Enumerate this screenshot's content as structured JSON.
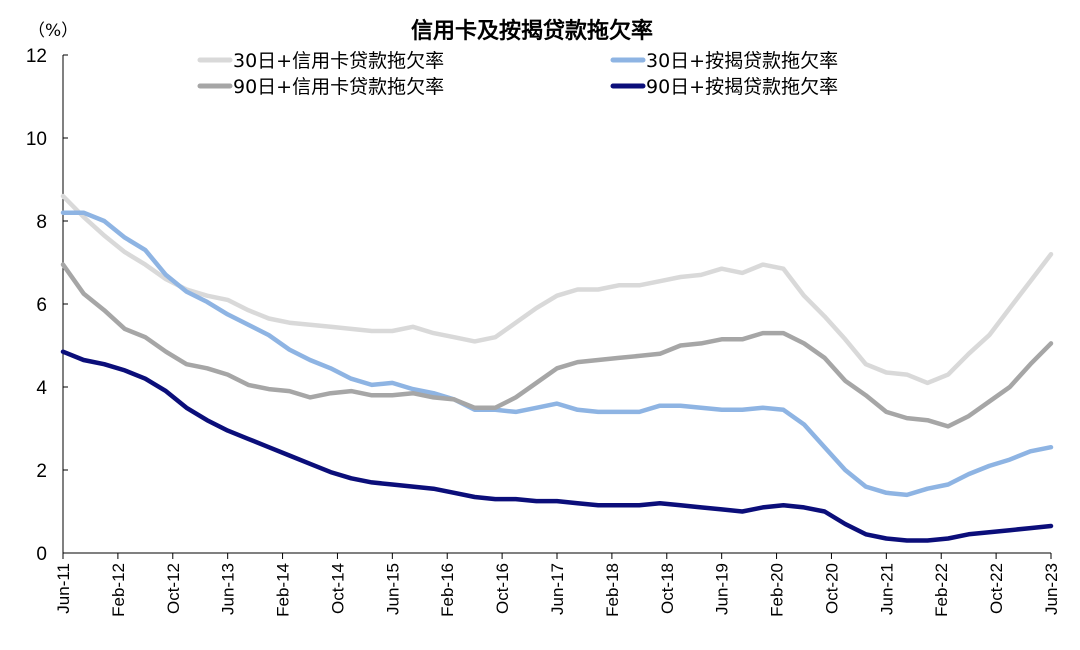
{
  "chart_data": {
    "type": "line",
    "title": "信用卡及按揭贷款拖欠率",
    "y_unit": "（%）",
    "ylim": [
      0,
      12
    ],
    "yticks": [
      "0",
      "2",
      "4",
      "6",
      "8",
      "10",
      "12"
    ],
    "x_tick_labels": [
      "Jun-11",
      "Feb-12",
      "Oct-12",
      "Jun-13",
      "Feb-14",
      "Oct-14",
      "Jun-15",
      "Feb-16",
      "Oct-16",
      "Jun-17",
      "Feb-18",
      "Oct-18",
      "Jun-19",
      "Feb-20",
      "Oct-20",
      "Jun-21",
      "Feb-22",
      "Oct-22",
      "Jun-23"
    ],
    "x_start": "Jun-11",
    "x_end": "Jun-23",
    "legend_position": "top-center",
    "grid": false,
    "series": [
      {
        "name": "30日+信用卡贷款拖欠率",
        "color": "#D9D9D9",
        "values": [
          8.6,
          8.1,
          7.65,
          7.25,
          6.95,
          6.6,
          6.35,
          6.2,
          6.1,
          5.85,
          5.65,
          5.55,
          5.5,
          5.45,
          5.4,
          5.35,
          5.35,
          5.45,
          5.3,
          5.2,
          5.1,
          5.2,
          5.55,
          5.9,
          6.2,
          6.35,
          6.35,
          6.45,
          6.45,
          6.55,
          6.65,
          6.7,
          6.85,
          6.75,
          6.95,
          6.85,
          6.2,
          5.7,
          5.15,
          4.55,
          4.35,
          4.3,
          4.1,
          4.3,
          4.8,
          5.25,
          5.9,
          6.55,
          7.2
        ]
      },
      {
        "name": "30日+按揭贷款拖欠率",
        "color": "#8EB4E3",
        "values": [
          8.2,
          8.2,
          8.0,
          7.6,
          7.3,
          6.7,
          6.3,
          6.05,
          5.75,
          5.5,
          5.25,
          4.9,
          4.65,
          4.45,
          4.2,
          4.05,
          4.1,
          3.95,
          3.85,
          3.7,
          3.45,
          3.45,
          3.4,
          3.5,
          3.6,
          3.45,
          3.4,
          3.4,
          3.4,
          3.55,
          3.55,
          3.5,
          3.45,
          3.45,
          3.5,
          3.45,
          3.1,
          2.55,
          2.0,
          1.6,
          1.45,
          1.4,
          1.55,
          1.65,
          1.9,
          2.1,
          2.25,
          2.45,
          2.55
        ]
      },
      {
        "name": "90日+信用卡贷款拖欠率",
        "color": "#A6A6A6",
        "values": [
          6.95,
          6.25,
          5.85,
          5.4,
          5.2,
          4.85,
          4.55,
          4.45,
          4.3,
          4.05,
          3.95,
          3.9,
          3.75,
          3.85,
          3.9,
          3.8,
          3.8,
          3.85,
          3.75,
          3.7,
          3.5,
          3.5,
          3.75,
          4.1,
          4.45,
          4.6,
          4.65,
          4.7,
          4.75,
          4.8,
          5.0,
          5.05,
          5.15,
          5.15,
          5.3,
          5.3,
          5.05,
          4.7,
          4.15,
          3.8,
          3.4,
          3.25,
          3.2,
          3.05,
          3.3,
          3.65,
          4.0,
          4.55,
          5.05
        ]
      },
      {
        "name": "90日+按揭贷款拖欠率",
        "color": "#0B0E7A",
        "values": [
          4.85,
          4.65,
          4.55,
          4.4,
          4.2,
          3.9,
          3.5,
          3.2,
          2.95,
          2.75,
          2.55,
          2.35,
          2.15,
          1.95,
          1.8,
          1.7,
          1.65,
          1.6,
          1.55,
          1.45,
          1.35,
          1.3,
          1.3,
          1.25,
          1.25,
          1.2,
          1.15,
          1.15,
          1.15,
          1.2,
          1.15,
          1.1,
          1.05,
          1.0,
          1.1,
          1.15,
          1.1,
          1.0,
          0.7,
          0.45,
          0.35,
          0.3,
          0.3,
          0.35,
          0.45,
          0.5,
          0.55,
          0.6,
          0.65
        ]
      }
    ]
  }
}
